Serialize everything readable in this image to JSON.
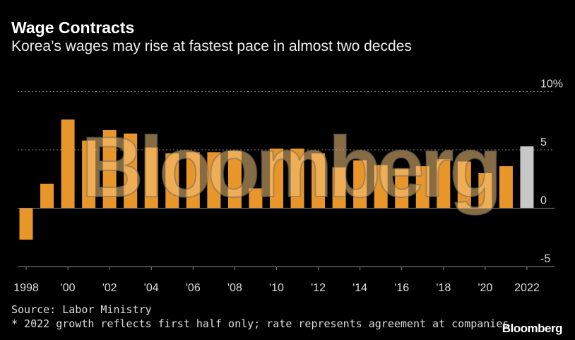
{
  "title": "Wage Contracts",
  "subtitle": "Korea’s wages may rise at fastest pace in almost two decdes",
  "source": "Source: Labor Ministry",
  "note": "* 2022 growth reflects first half only; rate represents agreement at companies",
  "logo": "Bloomberg",
  "watermark": "Bloomberg",
  "chart_data": {
    "type": "bar",
    "categories": [
      "1998",
      "1999",
      "2000",
      "2001",
      "2002",
      "2003",
      "2004",
      "2005",
      "2006",
      "2007",
      "2008",
      "2009",
      "2010",
      "2011",
      "2012",
      "2013",
      "2014",
      "2015",
      "2016",
      "2017",
      "2018",
      "2019",
      "2020",
      "2021",
      "2022"
    ],
    "values": [
      -2.7,
      2.1,
      7.6,
      5.8,
      6.7,
      6.4,
      5.2,
      4.7,
      4.8,
      4.8,
      4.9,
      1.7,
      5.1,
      5.1,
      4.7,
      3.5,
      4.1,
      3.7,
      3.4,
      3.6,
      4.2,
      4.0,
      3.0,
      3.6,
      5.3
    ],
    "ylim": [
      -5,
      10
    ],
    "yticks": [
      {
        "v": 10,
        "label": "10%"
      },
      {
        "v": 5,
        "label": "5"
      },
      {
        "v": 0,
        "label": "0"
      },
      {
        "v": -5,
        "label": "-5"
      }
    ],
    "xticks": [
      {
        "i": 0,
        "label": "1998"
      },
      {
        "i": 2,
        "label": "'00"
      },
      {
        "i": 4,
        "label": "'02"
      },
      {
        "i": 6,
        "label": "'04"
      },
      {
        "i": 8,
        "label": "'06"
      },
      {
        "i": 10,
        "label": "'08"
      },
      {
        "i": 12,
        "label": "'10"
      },
      {
        "i": 14,
        "label": "'12"
      },
      {
        "i": 16,
        "label": "'14"
      },
      {
        "i": 18,
        "label": "'16"
      },
      {
        "i": 20,
        "label": "'18"
      },
      {
        "i": 22,
        "label": "'20"
      },
      {
        "i": 24,
        "label": "2022"
      }
    ],
    "grid": true,
    "colors": {
      "bar": "#e8962a",
      "highlight": "#c8c8c8",
      "grid": "#777777"
    },
    "highlight_category": "2022"
  }
}
